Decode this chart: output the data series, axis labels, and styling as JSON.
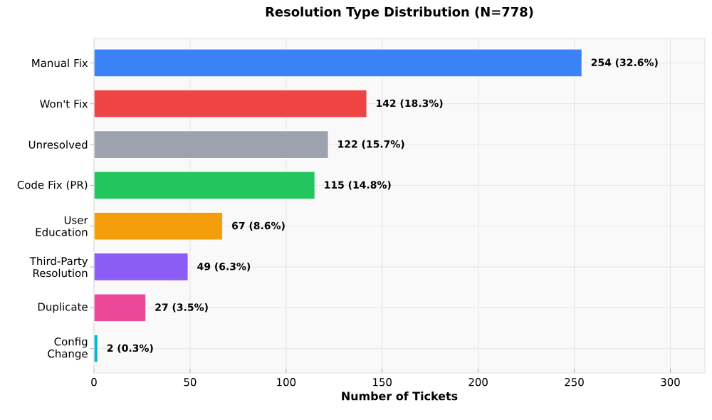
{
  "chart_data": {
    "type": "bar",
    "orientation": "horizontal",
    "title": "Resolution Type Distribution (N=778)",
    "xlabel": "Number of Tickets",
    "categories": [
      "Manual Fix",
      "Won't Fix",
      "Unresolved",
      "Code Fix (PR)",
      "User Education",
      "Third-Party Resolution",
      "Duplicate",
      "Config Change"
    ],
    "values": [
      254,
      142,
      122,
      115,
      67,
      49,
      27,
      2
    ],
    "value_labels": [
      "254 (32.6%)",
      "142 (18.3%)",
      "122 (15.7%)",
      "115 (14.8%)",
      "67 (8.6%)",
      "49 (6.3%)",
      "27 (3.5%)",
      "2 (0.3%)"
    ],
    "colors": [
      "#3b82f6",
      "#ef4444",
      "#9ca3af",
      "#22c55e",
      "#f59e0b",
      "#8b5cf6",
      "#ec4899",
      "#06b6d4"
    ],
    "xlim": [
      0,
      318
    ],
    "xticks": [
      0,
      50,
      100,
      150,
      200,
      250,
      300
    ],
    "grid": true
  }
}
